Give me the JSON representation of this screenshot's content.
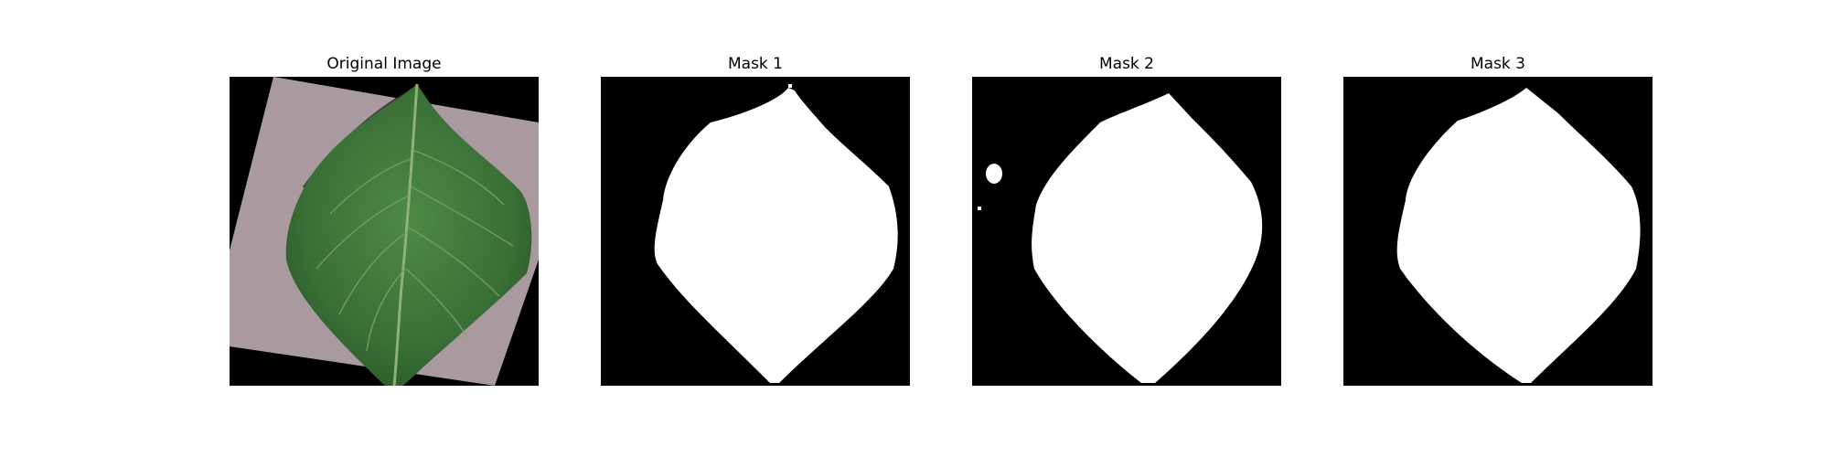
{
  "figure": {
    "panels": [
      {
        "title": "Original Image",
        "kind": "photo"
      },
      {
        "title": "Mask 1",
        "kind": "mask"
      },
      {
        "title": "Mask 2",
        "kind": "mask"
      },
      {
        "title": "Mask 3",
        "kind": "mask"
      }
    ]
  },
  "colors": {
    "background": "#ffffff",
    "mask_background": "#000000",
    "mask_foreground": "#ffffff",
    "leaf_green": "#3f7a3a",
    "paper_mauve": "#a99aa0"
  }
}
